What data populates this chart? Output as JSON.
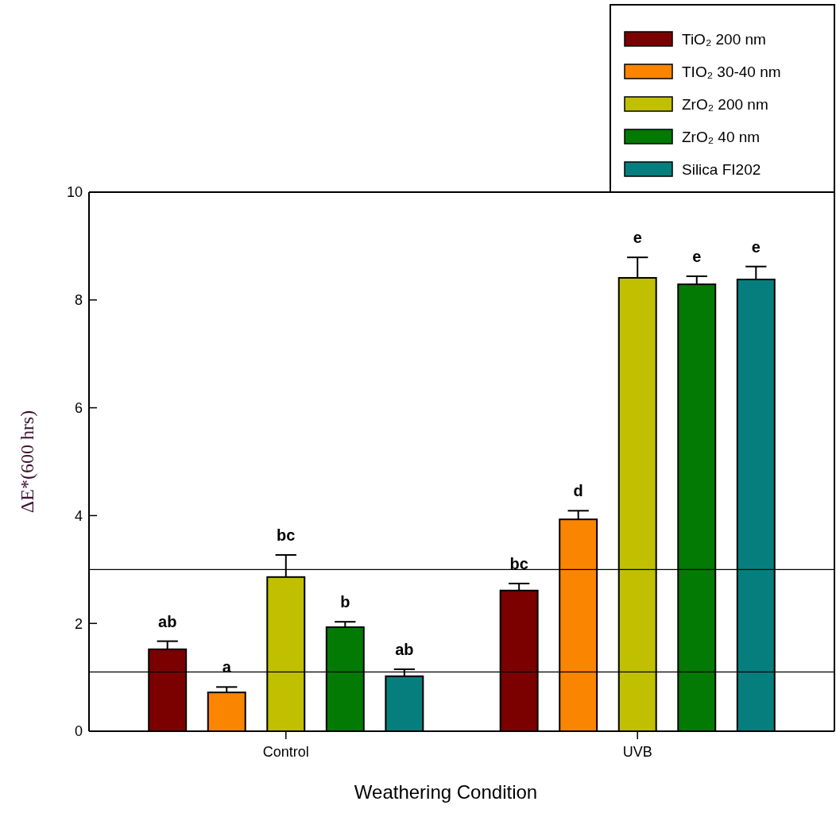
{
  "chart_data": {
    "type": "bar",
    "xlabel": "Weathering Condition",
    "ylabel": "ΔE*(600 hrs)",
    "categories": [
      "Control",
      "UVB"
    ],
    "series": [
      {
        "name": "TiO₂ 200 nm",
        "color": "#7b0000",
        "values": [
          1.52,
          2.61
        ],
        "errors": [
          0.15,
          0.13
        ],
        "value_labels": [
          "ab",
          "bc"
        ]
      },
      {
        "name": "TIO₂ 30-40 nm",
        "color": "#fa8500",
        "values": [
          0.72,
          3.93
        ],
        "errors": [
          0.1,
          0.16
        ],
        "value_labels": [
          "a",
          "d"
        ]
      },
      {
        "name": "ZrO₂ 200 nm",
        "color": "#c0c000",
        "values": [
          2.86,
          8.41
        ],
        "errors": [
          0.41,
          0.38
        ],
        "value_labels": [
          "bc",
          "e"
        ]
      },
      {
        "name": "ZrO₂ 40 nm",
        "color": "#037a03",
        "values": [
          1.93,
          8.29
        ],
        "errors": [
          0.1,
          0.15
        ],
        "value_labels": [
          "b",
          "e"
        ]
      },
      {
        "name": "Silica FI202",
        "color": "#077e7e",
        "values": [
          1.02,
          8.38
        ],
        "errors": [
          0.13,
          0.24
        ],
        "value_labels": [
          "ab",
          "e"
        ]
      }
    ],
    "ylim": [
      0,
      10
    ],
    "yticks": [
      0,
      2,
      4,
      6,
      8,
      10
    ],
    "ref_lines": [
      {
        "axis": "y",
        "value": 3.0,
        "color": "#000000"
      },
      {
        "axis": "y",
        "value": 1.1,
        "color": "#000000"
      }
    ],
    "legend": "top right",
    "grid": false
  }
}
